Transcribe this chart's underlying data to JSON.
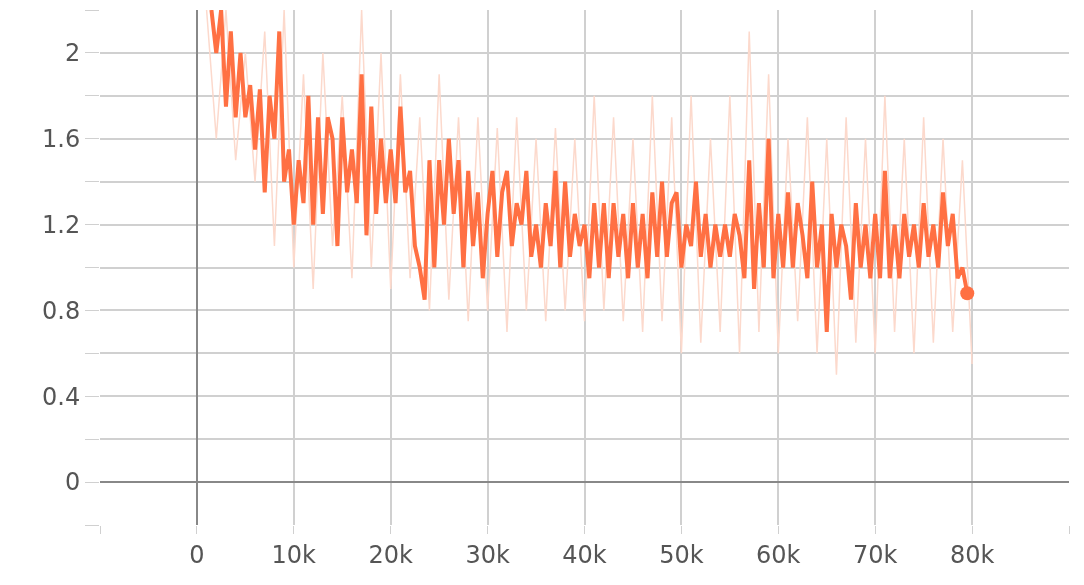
{
  "chart_data": {
    "type": "line",
    "xlim": [
      -10000,
      90000
    ],
    "ylim": [
      -0.2,
      2.2
    ],
    "xticks": [
      {
        "value": -10000,
        "label": null
      },
      0,
      {
        "value": 10000,
        "label": "10k"
      },
      {
        "value": 20000,
        "label": "20k"
      },
      {
        "value": 30000,
        "label": "30k"
      },
      {
        "value": 40000,
        "label": "40k"
      },
      {
        "value": 50000,
        "label": "50k"
      },
      {
        "value": 60000,
        "label": "60k"
      },
      {
        "value": 70000,
        "label": "70k"
      },
      {
        "value": 80000,
        "label": "80k"
      },
      {
        "value": 90000,
        "label": null
      }
    ],
    "yticks": [
      {
        "value": -0.2,
        "label": null
      },
      0,
      {
        "value": 0.2,
        "label": null
      },
      0.4,
      {
        "value": 0.6,
        "label": null
      },
      0.8,
      {
        "value": 1.0,
        "label": null
      },
      1.2,
      {
        "value": 1.4,
        "label": null
      },
      1.6,
      {
        "value": 1.8,
        "label": null
      },
      2,
      {
        "value": 2.2,
        "label": null
      }
    ],
    "grid": true,
    "line_style": "solid",
    "series": [
      {
        "type": "line",
        "color": "#fcd9cc",
        "x": [
          1000,
          2000,
          3000,
          4000,
          5000,
          6000,
          7000,
          8000,
          9000,
          10000,
          11000,
          12000,
          13000,
          14000,
          15000,
          16000,
          17000,
          18000,
          19000,
          20000,
          21000,
          22000,
          23000,
          24000,
          25000,
          26000,
          27000,
          28000,
          29000,
          30000,
          31000,
          32000,
          33000,
          34000,
          35000,
          36000,
          37000,
          38000,
          39000,
          40000,
          41000,
          42000,
          43000,
          44000,
          45000,
          46000,
          47000,
          48000,
          49000,
          50000,
          51000,
          52000,
          53000,
          54000,
          55000,
          56000,
          57000,
          58000,
          59000,
          60000,
          61000,
          62000,
          63000,
          64000,
          65000,
          66000,
          67000,
          68000,
          69000,
          70000,
          71000,
          72000,
          73000,
          74000,
          75000,
          76000,
          77000,
          78000,
          79000,
          80000
        ],
        "values": [
          2.2,
          1.6,
          2.2,
          1.5,
          2.0,
          1.4,
          2.1,
          1.1,
          2.2,
          1.0,
          1.9,
          0.9,
          2.0,
          1.1,
          1.8,
          0.95,
          2.2,
          1.0,
          2.0,
          0.9,
          1.9,
          0.95,
          1.7,
          0.8,
          1.9,
          0.85,
          1.7,
          0.75,
          1.7,
          0.8,
          1.65,
          0.7,
          1.7,
          0.8,
          1.6,
          0.75,
          1.65,
          0.8,
          1.6,
          0.75,
          1.8,
          0.8,
          1.7,
          0.75,
          1.6,
          0.7,
          1.8,
          0.75,
          1.7,
          0.6,
          1.8,
          0.65,
          1.6,
          0.7,
          1.8,
          0.6,
          2.1,
          0.7,
          1.9,
          0.6,
          1.6,
          0.75,
          1.7,
          0.6,
          1.6,
          0.5,
          1.7,
          0.65,
          1.6,
          0.6,
          1.8,
          0.7,
          1.6,
          0.6,
          1.7,
          0.65,
          1.6,
          0.7,
          1.5,
          0.55
        ]
      },
      {
        "type": "line",
        "color": "#ff7043",
        "x": [
          1500,
          2000,
          2500,
          3000,
          3500,
          4000,
          4500,
          5000,
          5500,
          6000,
          6500,
          7000,
          7500,
          8000,
          8500,
          9000,
          9500,
          10000,
          10500,
          11000,
          11500,
          12000,
          12500,
          13000,
          13500,
          14000,
          14500,
          15000,
          15500,
          16000,
          16500,
          17000,
          17500,
          18000,
          18500,
          19000,
          19500,
          20000,
          20500,
          21000,
          21500,
          22000,
          22500,
          23000,
          23500,
          24000,
          24500,
          25000,
          25500,
          26000,
          26500,
          27000,
          27500,
          28000,
          28500,
          29000,
          29500,
          30000,
          30500,
          31000,
          31500,
          32000,
          32500,
          33000,
          33500,
          34000,
          34500,
          35000,
          35500,
          36000,
          36500,
          37000,
          37500,
          38000,
          38500,
          39000,
          39500,
          40000,
          40500,
          41000,
          41500,
          42000,
          42500,
          43000,
          43500,
          44000,
          44500,
          45000,
          45500,
          46000,
          46500,
          47000,
          47500,
          48000,
          48500,
          49000,
          49500,
          50000,
          50500,
          51000,
          51500,
          52000,
          52500,
          53000,
          53500,
          54000,
          54500,
          55000,
          55500,
          56000,
          56500,
          57000,
          57500,
          58000,
          58500,
          59000,
          59500,
          60000,
          60500,
          61000,
          61500,
          62000,
          62500,
          63000,
          63500,
          64000,
          64500,
          65000,
          65500,
          66000,
          66500,
          67000,
          67500,
          68000,
          68500,
          69000,
          69500,
          70000,
          70500,
          71000,
          71500,
          72000,
          72500,
          73000,
          73500,
          74000,
          74500,
          75000,
          75500,
          76000,
          76500,
          77000,
          77500,
          78000,
          78500,
          79000,
          79500
        ],
        "values": [
          2.2,
          2.0,
          2.2,
          1.75,
          2.1,
          1.7,
          2.0,
          1.7,
          1.85,
          1.55,
          1.83,
          1.35,
          1.8,
          1.6,
          2.1,
          1.4,
          1.55,
          1.2,
          1.5,
          1.3,
          1.8,
          1.2,
          1.7,
          1.25,
          1.7,
          1.6,
          1.1,
          1.7,
          1.35,
          1.55,
          1.3,
          1.9,
          1.15,
          1.75,
          1.25,
          1.6,
          1.3,
          1.55,
          1.3,
          1.75,
          1.35,
          1.45,
          1.1,
          1.0,
          0.85,
          1.5,
          1.0,
          1.5,
          1.2,
          1.6,
          1.25,
          1.5,
          1.0,
          1.45,
          1.1,
          1.35,
          0.95,
          1.25,
          1.45,
          1.05,
          1.35,
          1.45,
          1.1,
          1.3,
          1.2,
          1.45,
          1.05,
          1.2,
          1.0,
          1.3,
          1.1,
          1.45,
          1.0,
          1.4,
          1.05,
          1.25,
          1.1,
          1.2,
          0.95,
          1.3,
          1.0,
          1.3,
          0.95,
          1.3,
          1.05,
          1.25,
          0.95,
          1.3,
          1.0,
          1.25,
          0.95,
          1.35,
          1.05,
          1.4,
          1.05,
          1.3,
          1.35,
          1.0,
          1.2,
          1.1,
          1.4,
          1.05,
          1.25,
          1.0,
          1.2,
          1.05,
          1.2,
          1.05,
          1.25,
          1.15,
          0.95,
          1.5,
          0.9,
          1.3,
          1.0,
          1.6,
          0.95,
          1.25,
          1.0,
          1.35,
          1.0,
          1.3,
          1.15,
          0.95,
          1.4,
          1.0,
          1.2,
          0.7,
          1.25,
          1.0,
          1.2,
          1.1,
          0.85,
          1.3,
          1.0,
          1.2,
          0.95,
          1.25,
          0.95,
          1.45,
          0.95,
          1.2,
          0.95,
          1.25,
          1.05,
          1.2,
          1.0,
          1.3,
          1.05,
          1.2,
          1.0,
          1.35,
          1.1,
          1.25,
          0.95,
          1.0,
          0.88
        ]
      },
      {
        "type": "scatter",
        "color": "#ff7043",
        "x": [
          79500
        ],
        "values": [
          0.88
        ]
      }
    ]
  }
}
